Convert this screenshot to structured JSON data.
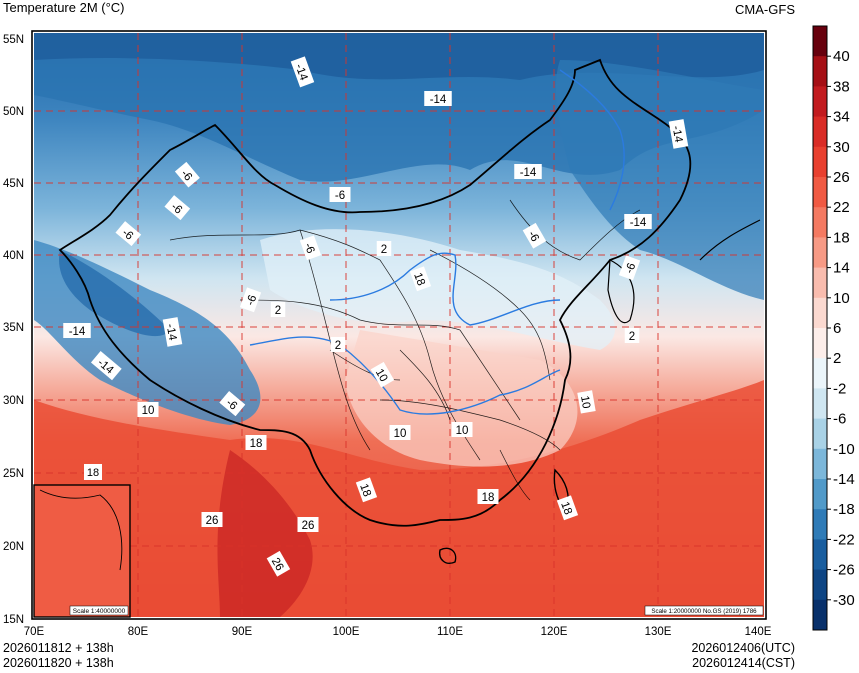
{
  "header": {
    "title": "Temperature  2M (°C)",
    "model": "CMA-GFS"
  },
  "axes": {
    "lat_labels": [
      "55N",
      "50N",
      "45N",
      "40N",
      "35N",
      "30N",
      "25N",
      "20N",
      "15N"
    ],
    "lon_labels": [
      "70E",
      "80E",
      "90E",
      "100E",
      "110E",
      "120E",
      "130E",
      "140E"
    ]
  },
  "contour_labels": [
    "-14",
    "-14",
    "-14",
    "-14",
    "-14",
    "-6",
    "-6",
    "-6",
    "-6",
    "-6",
    "-6",
    "-6",
    "-6",
    "2",
    "2",
    "2",
    "-6",
    "-14",
    "-14",
    "10",
    "10",
    "10",
    "10",
    "18",
    "18",
    "18",
    "18",
    "26",
    "26",
    "26",
    "18",
    "10",
    "-14",
    "-6",
    "2",
    "18"
  ],
  "colorbar": {
    "levels": [
      "40",
      "38",
      "34",
      "30",
      "26",
      "22",
      "18",
      "14",
      "10",
      "6",
      "2",
      "-2",
      "-6",
      "-10",
      "-14",
      "-18",
      "-22",
      "-26",
      "-30"
    ],
    "colors": [
      "#67000d",
      "#a50f15",
      "#c21b1f",
      "#d92c26",
      "#e8402f",
      "#f05a43",
      "#f47a62",
      "#f79a85",
      "#f9bcae",
      "#fbd9d0",
      "#fdeeea",
      "#ebf5fa",
      "#cfe6f1",
      "#a9d2e6",
      "#7cb7da",
      "#519ac9",
      "#2f7bb7",
      "#1a5e9f",
      "#0e4584",
      "#08306b"
    ]
  },
  "inset": {
    "scale_label": "Scale 1:40000000",
    "inset_value": "18"
  },
  "map_note": "Scale 1:20000000 No.GS (2019) 1786",
  "footer": {
    "init_utc": "2026011812 + 138h",
    "init_cst": "2026011820 + 138h",
    "valid_utc": "2026012406(UTC)",
    "valid_cst": "2026012414(CST)"
  }
}
